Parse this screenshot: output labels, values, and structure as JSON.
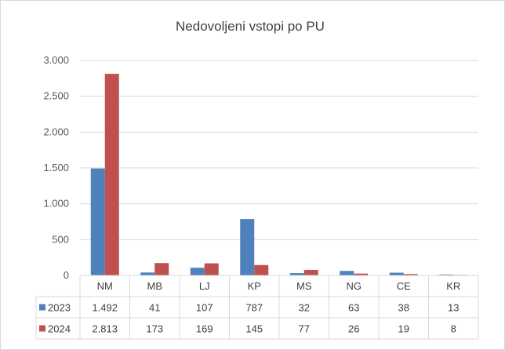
{
  "chart_data": {
    "type": "bar",
    "title": "Nedovoljeni vstopi po PU",
    "categories": [
      "NM",
      "MB",
      "LJ",
      "KP",
      "MS",
      "NG",
      "CE",
      "KR"
    ],
    "series": [
      {
        "name": "2023",
        "color": "#4f81bd",
        "values": [
          1492,
          41,
          107,
          787,
          32,
          63,
          38,
          13
        ],
        "labels": [
          "1.492",
          "41",
          "107",
          "787",
          "32",
          "63",
          "38",
          "13"
        ]
      },
      {
        "name": "2024",
        "color": "#c0504d",
        "values": [
          2813,
          173,
          169,
          145,
          77,
          26,
          19,
          8
        ],
        "labels": [
          "2.813",
          "173",
          "169",
          "145",
          "77",
          "26",
          "19",
          "8"
        ]
      }
    ],
    "ylim": [
      0,
      3000
    ],
    "yticks": [
      {
        "value": 0,
        "label": "0"
      },
      {
        "value": 500,
        "label": "500"
      },
      {
        "value": 1000,
        "label": "1.000"
      },
      {
        "value": 1500,
        "label": "1.500"
      },
      {
        "value": 2000,
        "label": "2.000"
      },
      {
        "value": 2500,
        "label": "2.500"
      },
      {
        "value": 3000,
        "label": "3.000"
      }
    ],
    "grid": true,
    "legend": "data-table",
    "data_table": true
  }
}
